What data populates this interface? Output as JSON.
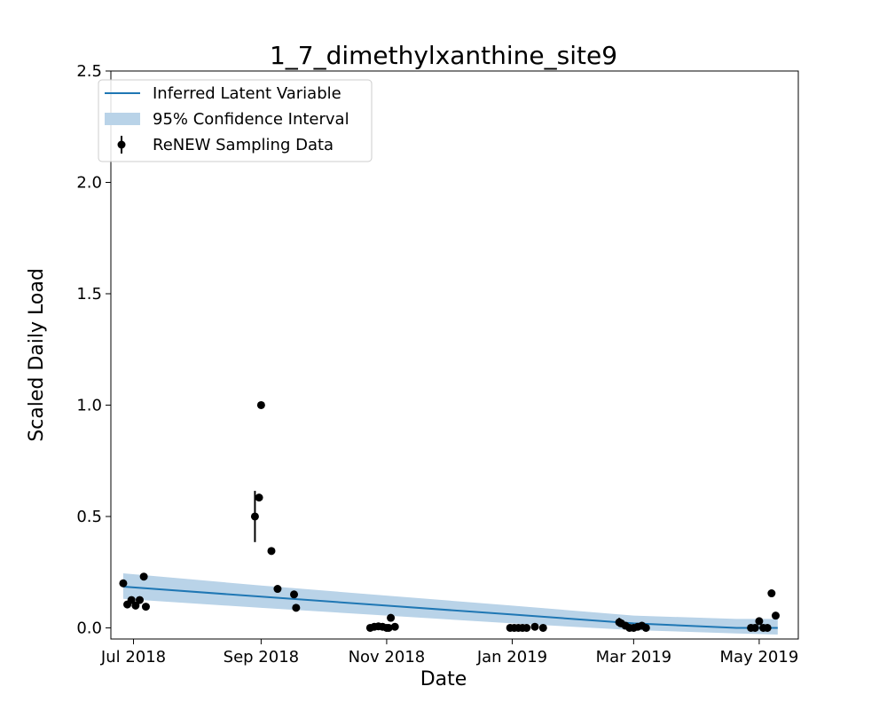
{
  "chart_data": {
    "type": "line",
    "title": "1_7_dimethylxanthine_site9",
    "xlabel": "Date",
    "ylabel": "Scaled Daily Load",
    "xlim": [
      "2018-06-20",
      "2019-05-20"
    ],
    "ylim": [
      -0.05,
      2.5
    ],
    "x_ticks": [
      {
        "date": "2018-07-01",
        "label": "Jul 2018"
      },
      {
        "date": "2018-09-01",
        "label": "Sep 2018"
      },
      {
        "date": "2018-11-01",
        "label": "Nov 2018"
      },
      {
        "date": "2019-01-01",
        "label": "Jan 2019"
      },
      {
        "date": "2019-03-01",
        "label": "Mar 2019"
      },
      {
        "date": "2019-05-01",
        "label": "May 2019"
      }
    ],
    "y_ticks": [
      0.0,
      0.5,
      1.0,
      1.5,
      2.0,
      2.5
    ],
    "y_tick_labels": [
      "0.0",
      "0.5",
      "1.0",
      "1.5",
      "2.0",
      "2.5"
    ],
    "grid": false,
    "legend_position": "top-left",
    "legend": [
      {
        "label": "Inferred Latent Variable",
        "kind": "line"
      },
      {
        "label": "95% Confidence Interval",
        "kind": "band"
      },
      {
        "label": "ReNEW Sampling Data",
        "kind": "errorbar"
      }
    ],
    "colors": {
      "line": "#1f77b4",
      "band": "#b9d3e8",
      "points": "#000000"
    },
    "series": [
      {
        "name": "Inferred Latent Variable",
        "kind": "line",
        "x": [
          "2018-06-26",
          "2018-09-01",
          "2018-11-01",
          "2019-01-01",
          "2019-03-01",
          "2019-04-20",
          "2019-05-10"
        ],
        "y": [
          0.185,
          0.14,
          0.1,
          0.06,
          0.02,
          0.0,
          0.0
        ]
      },
      {
        "name": "95% Confidence Interval",
        "kind": "band",
        "x": [
          "2018-06-26",
          "2018-09-01",
          "2018-11-01",
          "2019-01-01",
          "2019-03-01",
          "2019-04-20",
          "2019-05-10"
        ],
        "lower": [
          0.13,
          0.09,
          0.055,
          0.02,
          -0.01,
          -0.025,
          -0.03
        ],
        "upper": [
          0.245,
          0.19,
          0.145,
          0.1,
          0.055,
          0.04,
          0.04
        ]
      },
      {
        "name": "ReNEW Sampling Data",
        "kind": "scatter",
        "points": [
          {
            "x": "2018-06-26",
            "y": 0.2
          },
          {
            "x": "2018-06-28",
            "y": 0.105
          },
          {
            "x": "2018-06-30",
            "y": 0.125
          },
          {
            "x": "2018-07-02",
            "y": 0.1
          },
          {
            "x": "2018-07-04",
            "y": 0.125
          },
          {
            "x": "2018-07-06",
            "y": 0.23
          },
          {
            "x": "2018-07-07",
            "y": 0.095
          },
          {
            "x": "2018-08-29",
            "y": 0.5,
            "err": 0.115
          },
          {
            "x": "2018-08-31",
            "y": 0.585
          },
          {
            "x": "2018-09-01",
            "y": 1.0
          },
          {
            "x": "2018-09-06",
            "y": 0.345,
            "err": 0.015
          },
          {
            "x": "2018-09-09",
            "y": 0.175
          },
          {
            "x": "2018-09-17",
            "y": 0.15
          },
          {
            "x": "2018-09-18",
            "y": 0.09
          },
          {
            "x": "2018-10-24",
            "y": 0.0
          },
          {
            "x": "2018-10-26",
            "y": 0.005
          },
          {
            "x": "2018-10-28",
            "y": 0.007
          },
          {
            "x": "2018-10-30",
            "y": 0.005
          },
          {
            "x": "2018-11-01",
            "y": 0.0
          },
          {
            "x": "2018-11-02",
            "y": 0.0
          },
          {
            "x": "2018-11-03",
            "y": 0.045
          },
          {
            "x": "2018-11-05",
            "y": 0.005
          },
          {
            "x": "2018-12-31",
            "y": 0.0
          },
          {
            "x": "2019-01-02",
            "y": 0.0
          },
          {
            "x": "2019-01-04",
            "y": 0.0
          },
          {
            "x": "2019-01-06",
            "y": 0.0
          },
          {
            "x": "2019-01-08",
            "y": 0.0
          },
          {
            "x": "2019-01-12",
            "y": 0.005
          },
          {
            "x": "2019-01-16",
            "y": 0.0
          },
          {
            "x": "2019-02-22",
            "y": 0.025,
            "err": 0.02
          },
          {
            "x": "2019-02-23",
            "y": 0.02
          },
          {
            "x": "2019-02-25",
            "y": 0.01
          },
          {
            "x": "2019-02-27",
            "y": 0.0
          },
          {
            "x": "2019-03-01",
            "y": 0.0
          },
          {
            "x": "2019-03-03",
            "y": 0.005
          },
          {
            "x": "2019-03-05",
            "y": 0.01
          },
          {
            "x": "2019-03-07",
            "y": 0.0
          },
          {
            "x": "2019-04-27",
            "y": 0.0
          },
          {
            "x": "2019-04-29",
            "y": 0.0
          },
          {
            "x": "2019-05-01",
            "y": 0.03
          },
          {
            "x": "2019-05-03",
            "y": 0.0
          },
          {
            "x": "2019-05-05",
            "y": 0.0
          },
          {
            "x": "2019-05-07",
            "y": 0.155
          },
          {
            "x": "2019-05-09",
            "y": 0.055
          }
        ]
      }
    ]
  }
}
